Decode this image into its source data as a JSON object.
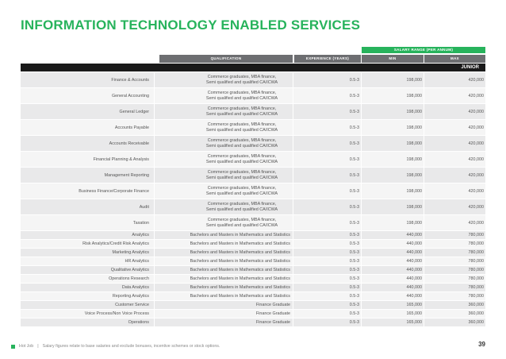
{
  "page": {
    "title": "INFORMATION TECHNOLOGY ENABLED SERVICES",
    "salary_range_label": "SALARY RANGE (PER ANNUM)",
    "page_number": "39"
  },
  "headers": {
    "qualification": "QUALIFICATION",
    "experience": "EXPERIENCE (YEARS)",
    "min": "MIN",
    "max": "MAX"
  },
  "section_label": "JUNIOR",
  "rows": [
    {
      "role": "Finance & Accounts",
      "qualification": "Commerce graduates, MBA finance, Semi qualified and qualified CA/ICWA",
      "experience": "0.5-3",
      "min": "198,000",
      "max": "420,000"
    },
    {
      "role": "General Accounting",
      "qualification": "Commerce graduates, MBA finance, Semi qualified and qualified CA/ICWA",
      "experience": "0.5-3",
      "min": "198,000",
      "max": "420,000"
    },
    {
      "role": "General Ledger",
      "qualification": "Commerce graduates, MBA finance, Semi qualified and qualified CA/ICWA",
      "experience": "0.5-3",
      "min": "198,000",
      "max": "420,000"
    },
    {
      "role": "Accounts Payable",
      "qualification": "Commerce graduates, MBA finance, Semi qualified and qualified CA/ICWA",
      "experience": "0.5-3",
      "min": "198,000",
      "max": "420,000"
    },
    {
      "role": "Accounts Receivable",
      "qualification": "Commerce graduates, MBA finance, Semi qualified and qualified CA/ICWA",
      "experience": "0.5-3",
      "min": "198,000",
      "max": "420,000"
    },
    {
      "role": "Financial Planning & Analysis",
      "qualification": "Commerce graduates, MBA finance, Semi qualified and qualified CA/ICWA",
      "experience": "0.5-3",
      "min": "198,000",
      "max": "420,000"
    },
    {
      "role": "Management Reporting",
      "qualification": "Commerce graduates, MBA finance, Semi qualified and qualified CA/ICWA",
      "experience": "0.5-3",
      "min": "198,000",
      "max": "420,000"
    },
    {
      "role": "Business Finance/Corporate Finance",
      "qualification": "Commerce graduates, MBA finance, Semi qualified and qualified CA/ICWA",
      "experience": "0.5-3",
      "min": "198,000",
      "max": "420,000"
    },
    {
      "role": "Audit",
      "qualification": "Commerce graduates, MBA finance, Semi qualified and qualified CA/ICWA",
      "experience": "0.5-3",
      "min": "198,000",
      "max": "420,000"
    },
    {
      "role": "Taxation",
      "qualification": "Commerce graduates, MBA finance, Semi qualified and qualified CA/ICWA",
      "experience": "0.5-3",
      "min": "198,000",
      "max": "420,000"
    },
    {
      "role": "Analytics",
      "qualification": "Bachelors and Masters in Mathematics and Statistics",
      "experience": "0.5-3",
      "min": "440,000",
      "max": "780,000"
    },
    {
      "role": "Risk Analytics/Credit Risk Analytics",
      "qualification": "Bachelors and Masters in Mathematics and Statistics",
      "experience": "0.5-3",
      "min": "440,000",
      "max": "780,000"
    },
    {
      "role": "Marketing Analytics",
      "qualification": "Bachelors and Masters in Mathematics and Statistics",
      "experience": "0.5-3",
      "min": "440,000",
      "max": "780,000"
    },
    {
      "role": "HR Analytics",
      "qualification": "Bachelors and Masters in Mathematics and Statistics",
      "experience": "0.5-3",
      "min": "440,000",
      "max": "780,000"
    },
    {
      "role": "Qualitative Analytics",
      "qualification": "Bachelors and Masters in Mathematics and Statistics",
      "experience": "0.5-3",
      "min": "440,000",
      "max": "780,000"
    },
    {
      "role": "Operations Research",
      "qualification": "Bachelors and Masters in Mathematics and Statistics",
      "experience": "0.5-3",
      "min": "440,000",
      "max": "780,000"
    },
    {
      "role": "Data Analytics",
      "qualification": "Bachelors and Masters in Mathematics and Statistics",
      "experience": "0.5-3",
      "min": "440,000",
      "max": "780,000"
    },
    {
      "role": "Reporting Analytics",
      "qualification": "Bachelors and Masters in Mathematics and Statistics",
      "experience": "0.5-3",
      "min": "440,000",
      "max": "780,000"
    },
    {
      "role": "Customer Service",
      "qualification": "Finance Graduate",
      "experience": "0.5-3",
      "min": "165,000",
      "max": "360,000"
    },
    {
      "role": "Voice Process/Non Voice Process",
      "qualification": "Finance Graduate",
      "experience": "0.5-3",
      "min": "165,000",
      "max": "360,000"
    },
    {
      "role": "Operations",
      "qualification": "Finance Graduate",
      "experience": "0.5-3",
      "min": "165,000",
      "max": "360,000"
    }
  ],
  "footer": {
    "brand": "Hot Job",
    "separator": "|",
    "note": "Salary figures relate to base salaries and exclude bonuses, incentive schemes or stock options."
  }
}
